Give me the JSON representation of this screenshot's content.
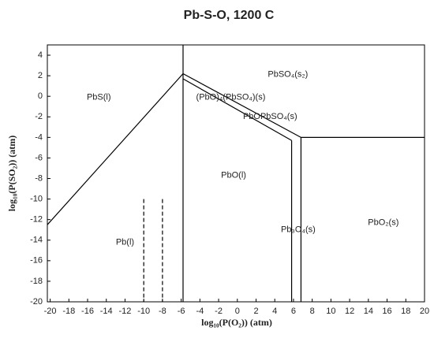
{
  "chart_data": {
    "type": "line",
    "title": "Pb-S-O, 1200 C",
    "x_label": "log₁₀(P(O₂)) (atm)",
    "y_label": "log₁₀(P(SO₂)) (atm)",
    "xlim": [
      -20.3,
      20
    ],
    "ylim": [
      -20,
      5
    ],
    "xticks": [
      -20,
      -18,
      -16,
      -14,
      -12,
      -10,
      -8,
      -6,
      -4,
      -2,
      0,
      2,
      4,
      6,
      8,
      10,
      12,
      14,
      16,
      18,
      20
    ],
    "yticks": [
      -20,
      -18,
      -16,
      -14,
      -12,
      -10,
      -8,
      -6,
      -4,
      -2,
      0,
      2,
      4
    ],
    "series": [
      {
        "color": "#000000",
        "x": [
          -5.8,
          -5.8
        ],
        "y": [
          5,
          -20
        ]
      },
      {
        "color": "#000000",
        "x": [
          -20.3,
          -5.8
        ],
        "y": [
          -12.5,
          2.2
        ]
      },
      {
        "color": "#000000",
        "x": [
          -5.8,
          6.8
        ],
        "y": [
          2.2,
          -4.0
        ]
      },
      {
        "color": "#000000",
        "x": [
          -5.8,
          5.8
        ],
        "y": [
          1.7,
          -4.3
        ]
      },
      {
        "color": "#000000",
        "x": [
          6.8,
          20
        ],
        "y": [
          -4.0,
          -4.0
        ]
      },
      {
        "color": "#000000",
        "x": [
          6.8,
          6.8
        ],
        "y": [
          -4.0,
          -20
        ]
      },
      {
        "color": "#000000",
        "x": [
          5.8,
          5.8
        ],
        "y": [
          -4.3,
          -20
        ]
      },
      {
        "color": "#000000",
        "dashed": true,
        "x": [
          -10,
          -10
        ],
        "y": [
          -10,
          -20
        ]
      },
      {
        "color": "#000000",
        "dashed": true,
        "x": [
          -8,
          -8
        ],
        "y": [
          -10,
          -20
        ]
      }
    ],
    "annotations": [
      {
        "text": "PbS(l)",
        "x": -14.8,
        "y": -0.1
      },
      {
        "text": "PbSO₄(s₂)",
        "x": 5.4,
        "y": 2.1
      },
      {
        "text": "(PbO)₄(PbSO₄)(s)",
        "x": -0.7,
        "y": -0.1
      },
      {
        "text": "PbOPbSO₄(s)",
        "x": 3.5,
        "y": -2.0
      },
      {
        "text": "PbO(l)",
        "x": -0.4,
        "y": -7.7
      },
      {
        "text": "Pb(l)",
        "x": -12.0,
        "y": -14.2
      },
      {
        "text": "Pb₃O₄(s)",
        "x": 6.5,
        "y": -13.0
      },
      {
        "text": "PbO₂(s)",
        "x": 15.6,
        "y": -12.3
      }
    ]
  }
}
